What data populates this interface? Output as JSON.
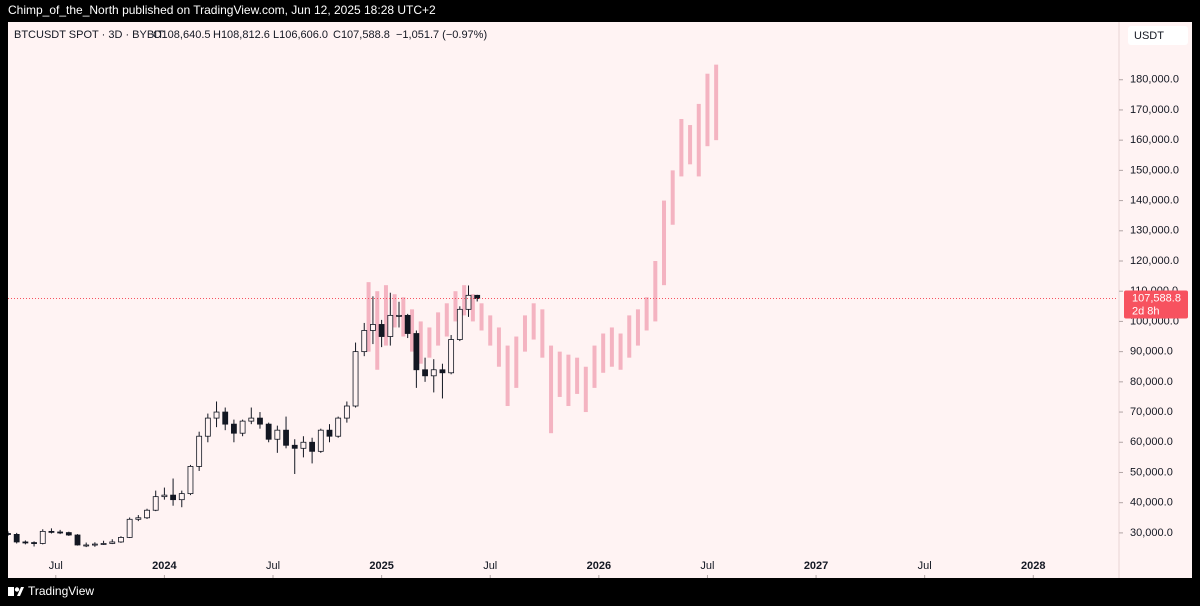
{
  "header": {
    "published": "Chimp_of_the_North published on TradingView.com, Jun 12, 2025 18:28 UTC+2"
  },
  "footer": {
    "brand": "TradingView"
  },
  "chart_data": {
    "type": "candlestick",
    "legend": {
      "symbol": "BTCUSDT SPOT · 3D · BYBIT",
      "open": "O108,640.5",
      "high": "H108,812.6",
      "low": "L106,606.0",
      "close": "C107,588.8",
      "change": "−1,051.7 (−0.97%)"
    },
    "y_unit": "USDT",
    "last_price": {
      "value": 107588.8,
      "label": "107,588.8",
      "countdown": "2d 8h",
      "color": "#f7525f"
    },
    "xlim": [
      2023.28,
      2028.39
    ],
    "xticks": [
      {
        "value": 2023.5,
        "label": "Jul"
      },
      2024,
      {
        "value": 2024.5,
        "label": "Jul"
      },
      2025,
      {
        "value": 2025.5,
        "label": "Jul"
      },
      2026,
      {
        "value": 2026.5,
        "label": "Jul"
      },
      2027,
      {
        "value": 2027.5,
        "label": "Jul"
      },
      2028
    ],
    "ylim": [
      25000,
      191500
    ],
    "yticks": [
      {
        "value": 30000,
        "label": "30,000.0"
      },
      {
        "value": 40000,
        "label": "40,000.0"
      },
      {
        "value": 50000,
        "label": "50,000.0"
      },
      {
        "value": 60000,
        "label": "60,000.0"
      },
      {
        "value": 70000,
        "label": "70,000.0"
      },
      {
        "value": 80000,
        "label": "80,000.0"
      },
      {
        "value": 90000,
        "label": "90,000.0"
      },
      {
        "value": 100000,
        "label": "100,000.0"
      },
      {
        "value": 110000,
        "label": "110,000.0"
      },
      {
        "value": 120000,
        "label": "120,000.0"
      },
      {
        "value": 130000,
        "label": "130,000.0"
      },
      {
        "value": 140000,
        "label": "140,000.0"
      },
      {
        "value": 150000,
        "label": "150,000.0"
      },
      {
        "value": 160000,
        "label": "160,000.0"
      },
      {
        "value": 170000,
        "label": "170,000.0"
      },
      {
        "value": 180000,
        "label": "180,000.0"
      }
    ],
    "candles": {
      "color": "#131722",
      "x": [
        2023.28,
        2023.32,
        2023.36,
        2023.4,
        2023.44,
        2023.48,
        2023.52,
        2023.56,
        2023.6,
        2023.64,
        2023.68,
        2023.72,
        2023.76,
        2023.8,
        2023.84,
        2023.88,
        2023.92,
        2023.96,
        2024.0,
        2024.04,
        2024.08,
        2024.12,
        2024.16,
        2024.2,
        2024.24,
        2024.28,
        2024.32,
        2024.36,
        2024.4,
        2024.44,
        2024.48,
        2024.52,
        2024.56,
        2024.6,
        2024.64,
        2024.68,
        2024.72,
        2024.76,
        2024.8,
        2024.84,
        2024.88,
        2024.92,
        2024.96,
        2025.0,
        2025.04,
        2025.08,
        2025.12,
        2025.16,
        2025.2,
        2025.24,
        2025.28,
        2025.32,
        2025.36,
        2025.4,
        2025.44
      ],
      "open": [
        29800,
        29500,
        27000,
        26800,
        26500,
        30500,
        30300,
        30100,
        29300,
        26000,
        26000,
        26300,
        26500,
        27000,
        28500,
        34500,
        35000,
        37500,
        42000,
        42500,
        41000,
        43000,
        52000,
        62000,
        68000,
        70000,
        66000,
        63000,
        67000,
        68000,
        66000,
        61000,
        64000,
        59000,
        58000,
        60000,
        57000,
        64000,
        62000,
        68000,
        72000,
        90000,
        97000,
        99000,
        95000,
        102000,
        102000,
        96000,
        84000,
        82000,
        84000,
        83000,
        94000,
        104000,
        108640.5
      ],
      "high": [
        30500,
        30000,
        27500,
        27200,
        31200,
        31500,
        31000,
        30400,
        29600,
        26800,
        26900,
        27400,
        27900,
        28900,
        35100,
        35900,
        38000,
        44000,
        45000,
        48000,
        44000,
        52500,
        63500,
        69500,
        73500,
        71500,
        67500,
        67500,
        71500,
        70000,
        66500,
        65500,
        68500,
        61000,
        62000,
        61500,
        64500,
        66000,
        68500,
        73500,
        93000,
        99500,
        108300,
        100500,
        109500,
        106500,
        102500,
        97000,
        88000,
        87500,
        86000,
        95500,
        105000,
        111900,
        108812.6
      ],
      "low": [
        29000,
        26500,
        26200,
        25500,
        26200,
        29800,
        29600,
        29000,
        25800,
        25300,
        25400,
        26000,
        26300,
        26700,
        28300,
        33900,
        34600,
        37200,
        41000,
        39000,
        38500,
        42500,
        50500,
        60000,
        65000,
        64000,
        60000,
        62000,
        66000,
        64500,
        60000,
        56500,
        58000,
        49500,
        55000,
        53000,
        56500,
        60000,
        61500,
        66500,
        71500,
        88500,
        92500,
        91500,
        92000,
        98000,
        94500,
        78000,
        80000,
        76500,
        74500,
        82500,
        93500,
        101500,
        106606.0
      ],
      "close": [
        29500,
        27000,
        26800,
        26500,
        30500,
        30300,
        30100,
        29300,
        26000,
        26000,
        26300,
        26500,
        27000,
        28500,
        34500,
        35000,
        37500,
        42000,
        42500,
        41000,
        43000,
        52000,
        62000,
        68000,
        70000,
        66000,
        63000,
        67000,
        68000,
        66000,
        61000,
        64000,
        59000,
        58000,
        60000,
        57000,
        64000,
        62000,
        68000,
        72000,
        90000,
        97000,
        99000,
        95000,
        102000,
        102000,
        96000,
        84000,
        82000,
        84000,
        83000,
        94000,
        104000,
        108640.5,
        107588.8
      ]
    },
    "projection": {
      "color": "#f4b3c1",
      "x": [
        2024.94,
        2024.98,
        2025.02,
        2025.06,
        2025.1,
        2025.14,
        2025.18,
        2025.22,
        2025.26,
        2025.3,
        2025.34,
        2025.38,
        2025.42,
        2025.46,
        2025.5,
        2025.54,
        2025.58,
        2025.62,
        2025.66,
        2025.7,
        2025.74,
        2025.78,
        2025.82,
        2025.86,
        2025.9,
        2025.94,
        2025.98,
        2026.02,
        2026.06,
        2026.1,
        2026.14,
        2026.18,
        2026.22,
        2026.26,
        2026.3,
        2026.34,
        2026.38,
        2026.42,
        2026.46,
        2026.5,
        2026.54
      ],
      "low": [
        90000,
        84000,
        92000,
        98000,
        95000,
        90000,
        86000,
        88000,
        92000,
        95000,
        100000,
        102000,
        100000,
        97000,
        92000,
        85000,
        72000,
        78000,
        90000,
        94000,
        88000,
        63000,
        75000,
        72000,
        76000,
        70000,
        78000,
        83000,
        85000,
        84000,
        88000,
        92000,
        97000,
        100000,
        112000,
        132000,
        148000,
        152000,
        148000,
        158000,
        160000
      ],
      "high": [
        113000,
        110000,
        112000,
        109000,
        108000,
        104000,
        100000,
        98000,
        103000,
        106000,
        110000,
        112000,
        109000,
        106000,
        102000,
        98000,
        92000,
        95000,
        102000,
        106000,
        104000,
        92000,
        90000,
        89000,
        88000,
        85000,
        92000,
        96000,
        98000,
        96000,
        102000,
        104000,
        108000,
        120000,
        140000,
        150000,
        167000,
        165000,
        172000,
        182000,
        185000
      ]
    }
  }
}
